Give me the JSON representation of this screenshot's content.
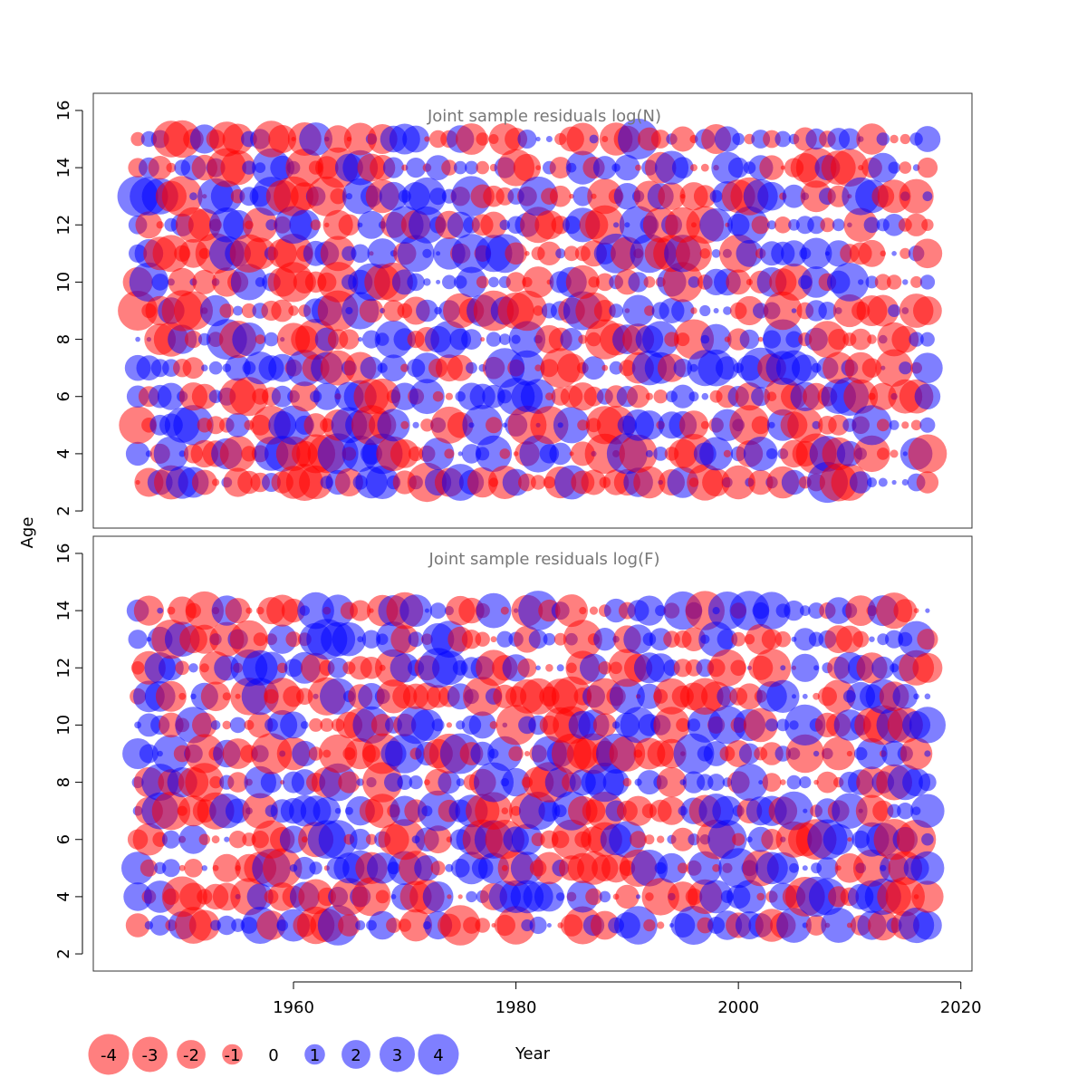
{
  "chart_data": [
    {
      "type": "scatter",
      "subtype": "bubble",
      "title": "Joint sample residuals log(N)",
      "ylabel": "Age",
      "xlim": [
        1942,
        2021
      ],
      "ylim": [
        1.4,
        16.6
      ],
      "yticks": [
        2,
        4,
        6,
        8,
        10,
        12,
        14,
        16
      ],
      "ages": [
        3,
        4,
        5,
        6,
        7,
        8,
        9,
        10,
        11,
        12,
        13,
        14,
        15
      ],
      "years": [
        1946,
        2017
      ],
      "colors": {
        "negative": "#ff0000",
        "positive": "#0000ff"
      },
      "note": "bubble area proportional to |residual|; red = negative, blue = positive"
    },
    {
      "type": "scatter",
      "subtype": "bubble",
      "title": "Joint sample residuals log(F)",
      "ylabel": "Age",
      "xlabel": "Year",
      "xlim": [
        1942,
        2021
      ],
      "ylim": [
        1.4,
        16.6
      ],
      "xticks": [
        1960,
        1980,
        2000,
        2020
      ],
      "yticks": [
        2,
        4,
        6,
        8,
        10,
        12,
        14,
        16
      ],
      "ages": [
        3,
        4,
        5,
        6,
        7,
        8,
        9,
        10,
        11,
        12,
        13,
        14
      ],
      "years": [
        1946,
        2017
      ],
      "colors": {
        "negative": "#ff0000",
        "positive": "#0000ff"
      }
    }
  ],
  "shared_ylabel": "Age",
  "shared_xlabel": "Year",
  "legend": {
    "values": [
      "-4",
      "-3",
      "-2",
      "-1",
      "0",
      "1",
      "2",
      "3",
      "4"
    ],
    "magnitudes": [
      4,
      3,
      2,
      1,
      0,
      1,
      2,
      3,
      4
    ],
    "signs": [
      -1,
      -1,
      -1,
      -1,
      0,
      1,
      1,
      1,
      1
    ]
  }
}
